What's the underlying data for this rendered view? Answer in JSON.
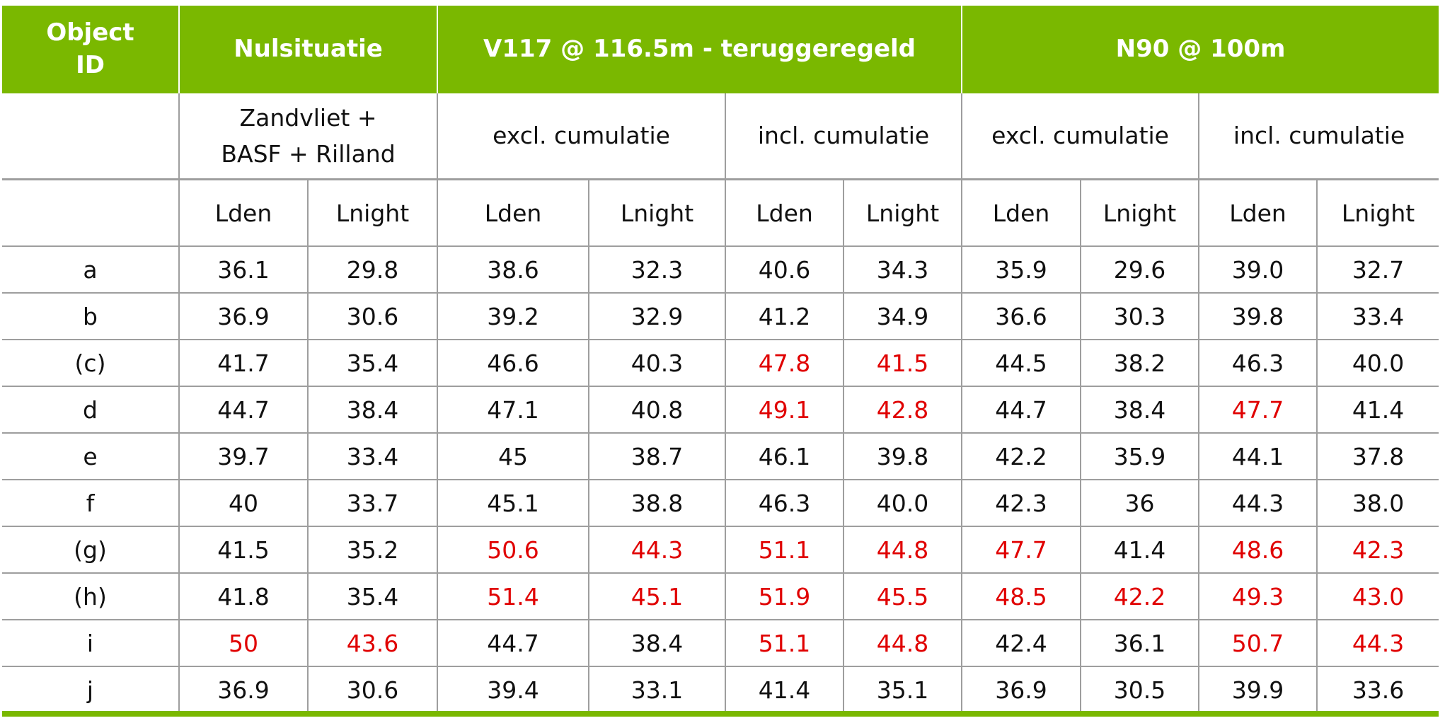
{
  "headers": {
    "object_id": "Object ID",
    "group1": "Nulsituatie",
    "group2": "V117 @ 116.5m - teruggeregeld",
    "group3": "N90 @ 100m"
  },
  "subheaders": {
    "blank": "",
    "nul_sub": "Zandvliet + BASF + Rilland",
    "excl": "excl. cumulatie",
    "incl": "incl. cumulatie",
    "excl2": "excl. cumulatie",
    "incl2": "incl. cumulatie"
  },
  "metrics": [
    "Lden",
    "Lnight",
    "Lden",
    "Lnight",
    "Lden",
    "Lnight",
    "Lden",
    "Lnight",
    "Lden",
    "Lnight"
  ],
  "highlight_color": "#e00000",
  "rows": [
    {
      "id": "a",
      "values": [
        "36.1",
        "29.8",
        "38.6",
        "32.3",
        "40.6",
        "34.3",
        "35.9",
        "29.6",
        "39.0",
        "32.7"
      ],
      "highlight": []
    },
    {
      "id": "b",
      "values": [
        "36.9",
        "30.6",
        "39.2",
        "32.9",
        "41.2",
        "34.9",
        "36.6",
        "30.3",
        "39.8",
        "33.4"
      ],
      "highlight": []
    },
    {
      "id": "(c)",
      "values": [
        "41.7",
        "35.4",
        "46.6",
        "40.3",
        "47.8",
        "41.5",
        "44.5",
        "38.2",
        "46.3",
        "40.0"
      ],
      "highlight": [
        4,
        5
      ]
    },
    {
      "id": "d",
      "values": [
        "44.7",
        "38.4",
        "47.1",
        "40.8",
        "49.1",
        "42.8",
        "44.7",
        "38.4",
        "47.7",
        "41.4"
      ],
      "highlight": [
        4,
        5,
        8
      ]
    },
    {
      "id": "e",
      "values": [
        "39.7",
        "33.4",
        "45",
        "38.7",
        "46.1",
        "39.8",
        "42.2",
        "35.9",
        "44.1",
        "37.8"
      ],
      "highlight": []
    },
    {
      "id": "f",
      "values": [
        "40",
        "33.7",
        "45.1",
        "38.8",
        "46.3",
        "40.0",
        "42.3",
        "36",
        "44.3",
        "38.0"
      ],
      "highlight": []
    },
    {
      "id": "(g)",
      "values": [
        "41.5",
        "35.2",
        "50.6",
        "44.3",
        "51.1",
        "44.8",
        "47.7",
        "41.4",
        "48.6",
        "42.3"
      ],
      "highlight": [
        2,
        3,
        4,
        5,
        6,
        8,
        9
      ]
    },
    {
      "id": "(h)",
      "values": [
        "41.8",
        "35.4",
        "51.4",
        "45.1",
        "51.9",
        "45.5",
        "48.5",
        "42.2",
        "49.3",
        "43.0"
      ],
      "highlight": [
        2,
        3,
        4,
        5,
        6,
        7,
        8,
        9
      ]
    },
    {
      "id": "i",
      "values": [
        "50",
        "43.6",
        "44.7",
        "38.4",
        "51.1",
        "44.8",
        "42.4",
        "36.1",
        "50.7",
        "44.3"
      ],
      "highlight": [
        0,
        1,
        4,
        5,
        8,
        9
      ]
    },
    {
      "id": "j",
      "values": [
        "36.9",
        "30.6",
        "39.4",
        "33.1",
        "41.4",
        "35.1",
        "36.9",
        "30.5",
        "39.9",
        "33.6"
      ],
      "highlight": []
    }
  ]
}
